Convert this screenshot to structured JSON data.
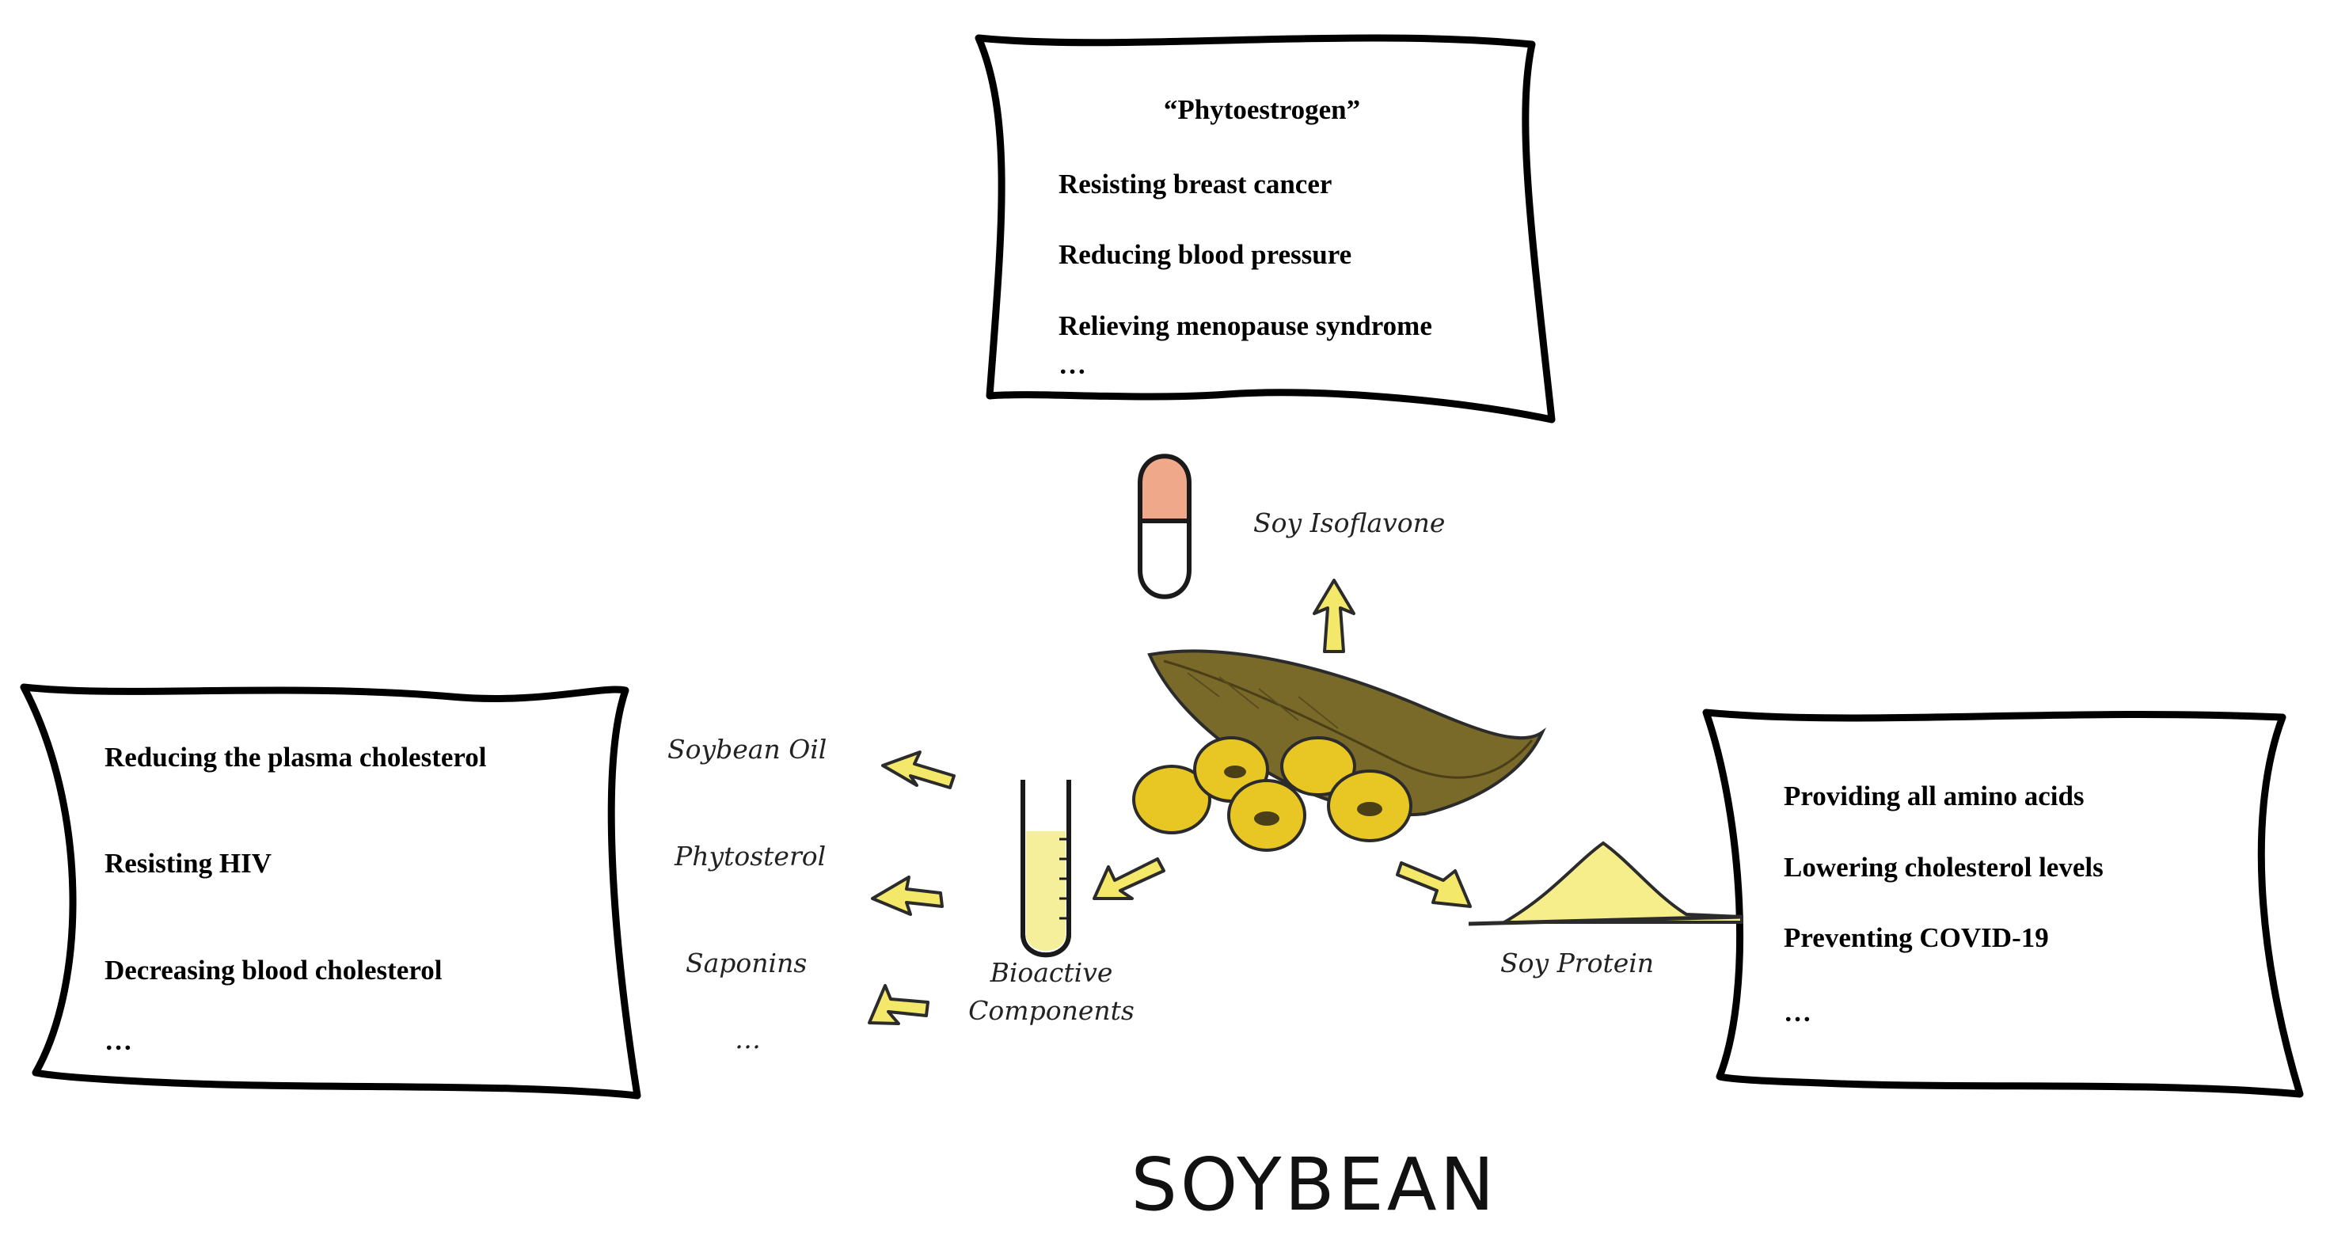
{
  "title": "SOYBEAN",
  "top_box": {
    "heading": "“Phytoestrogen”",
    "items": [
      "Resisting breast cancer",
      "Reducing blood pressure",
      "Relieving menopause syndrome",
      "…"
    ]
  },
  "left_box": {
    "items": [
      "Reducing the plasma cholesterol",
      "Resisting HIV",
      "Decreasing blood cholesterol",
      "…"
    ]
  },
  "right_box": {
    "items": [
      "Providing all amino acids",
      "Lowering cholesterol levels",
      "Preventing COVID-19",
      "…"
    ]
  },
  "labels": {
    "soy_isoflavone": "Soy Isoflavone",
    "soybean_oil": "Soybean Oil",
    "phytosterol": "Phytosterol",
    "saponins": "Saponins",
    "ellipsis": "…",
    "bioactive_line1": "Bioactive",
    "bioactive_line2": "Components",
    "soy_protein": "Soy Protein"
  },
  "colors": {
    "arrow_fill": "#f3e86a",
    "bean_yellow": "#e8c623",
    "pod_brown": "#7a6a2a",
    "capsule_top": "#f0a88a",
    "protein_powder": "#f5ee8a"
  },
  "icons": [
    "capsule-icon",
    "soybean-pod-icon",
    "test-tube-icon",
    "protein-powder-icon"
  ]
}
